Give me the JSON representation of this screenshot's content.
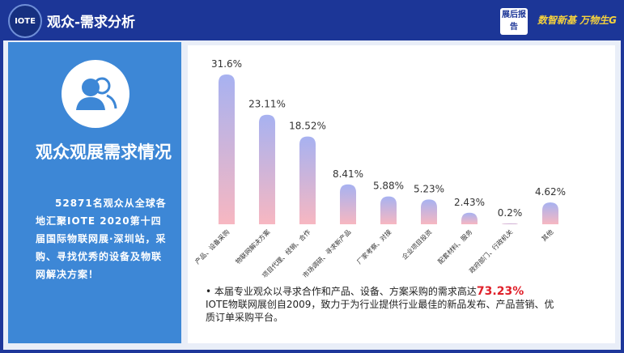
{
  "header": {
    "logo": "IOTE",
    "title": "观众-需求分析",
    "badge": "展后报告",
    "slogan": "数智新基 万物生G"
  },
  "left": {
    "heading": "观众观展需求情况",
    "text": "52871名观众从全球各地汇聚IOTE 2020第十四届国际物联网展·深圳站，采购、寻找优秀的设备及物联网解决方案！"
  },
  "chart_data": {
    "type": "bar",
    "categories": [
      "产品、设备采购",
      "物联网解决方案",
      "项目代理、经销、合作",
      "市场调研、寻求新产品",
      "厂家考察、对接",
      "企业项目投资",
      "配套材料、服务",
      "政府部门、行政机关",
      "其他"
    ],
    "values": [
      31.6,
      23.11,
      18.52,
      8.41,
      5.88,
      5.23,
      2.43,
      0.2,
      4.62
    ],
    "value_labels": [
      "31.6%",
      "23.11%",
      "18.52%",
      "8.41%",
      "5.88%",
      "5.23%",
      "2.43%",
      "0.2%",
      "4.62%"
    ],
    "colors": [
      "#a7b2f1",
      "#f7b7c1"
    ]
  },
  "notes": {
    "line1": "本届专业观众以寻求合作和产品、设备、方案采购的需求高达",
    "highlight": "73.23%",
    "line2": "IOTE物联网展创自2009，致力于为行业提供行业最佳的新品发布、产品营销、优质订单采购平台。"
  }
}
